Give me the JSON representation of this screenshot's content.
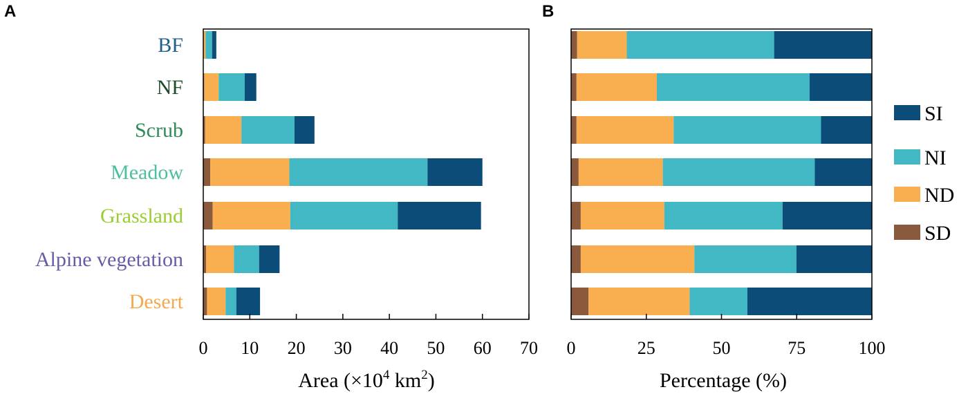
{
  "chart_data": [
    {
      "panel": "A",
      "type": "bar",
      "orientation": "horizontal",
      "stacked": true,
      "categories": [
        "BF",
        "NF",
        "Scrub",
        "Meadow",
        "Grassland",
        "Alpine vegetation",
        "Desert"
      ],
      "category_colors": [
        "#1f5f8b",
        "#1e4d2b",
        "#2e8b57",
        "#4dbfa0",
        "#9acd32",
        "#6a5aa8",
        "#f5a94e"
      ],
      "series": [
        {
          "name": "SD",
          "color": "#8b5a3c",
          "values": [
            0.05,
            0.2,
            0.4,
            1.5,
            2.0,
            0.6,
            0.8
          ]
        },
        {
          "name": "ND",
          "color": "#f9ae4f",
          "values": [
            0.45,
            3.1,
            7.8,
            17.0,
            16.7,
            6.0,
            4.0
          ]
        },
        {
          "name": "NI",
          "color": "#42b8c4",
          "values": [
            1.4,
            5.6,
            11.4,
            29.7,
            23.1,
            5.4,
            2.3
          ]
        },
        {
          "name": "SI",
          "color": "#0b4c78",
          "values": [
            0.9,
            2.5,
            4.3,
            11.8,
            17.9,
            4.4,
            5.1
          ]
        }
      ],
      "xlabel_parts": [
        "Area (×10",
        "4",
        " km",
        "2",
        ")"
      ],
      "xlim": [
        0,
        70
      ],
      "xticks": [
        0,
        10,
        20,
        30,
        40,
        50,
        60,
        70
      ],
      "xtick_labels": [
        "0",
        "10",
        "20",
        "30",
        "40",
        "50",
        "60",
        "70"
      ]
    },
    {
      "panel": "B",
      "type": "bar",
      "orientation": "horizontal",
      "stacked": true,
      "categories": [
        "BF",
        "NF",
        "Scrub",
        "Meadow",
        "Grassland",
        "Alpine vegetation",
        "Desert"
      ],
      "series": [
        {
          "name": "SD",
          "color": "#8b5a3c",
          "values": [
            2.0,
            1.8,
            1.8,
            2.5,
            3.2,
            3.2,
            5.8
          ]
        },
        {
          "name": "ND",
          "color": "#f9ae4f",
          "values": [
            16.5,
            26.7,
            32.3,
            28.0,
            27.8,
            37.8,
            33.6
          ]
        },
        {
          "name": "NI",
          "color": "#42b8c4",
          "values": [
            49.0,
            50.8,
            49.0,
            50.5,
            39.3,
            33.9,
            19.2
          ]
        },
        {
          "name": "SI",
          "color": "#0b4c78",
          "values": [
            32.5,
            20.7,
            16.9,
            19.0,
            29.7,
            25.1,
            41.4
          ]
        }
      ],
      "xlabel": "Percentage (%)",
      "xlim": [
        0,
        100
      ],
      "xticks": [
        0,
        25,
        50,
        75,
        100
      ],
      "xtick_labels": [
        "0",
        "25",
        "50",
        "75",
        "100"
      ]
    }
  ],
  "panel_labels": [
    "A",
    "B"
  ],
  "legend": {
    "position": "right",
    "items": [
      {
        "name": "SI",
        "color": "#0b4c78"
      },
      {
        "name": "NI",
        "color": "#42b8c4"
      },
      {
        "name": "ND",
        "color": "#f9ae4f"
      },
      {
        "name": "SD",
        "color": "#8b5a3c"
      }
    ]
  }
}
